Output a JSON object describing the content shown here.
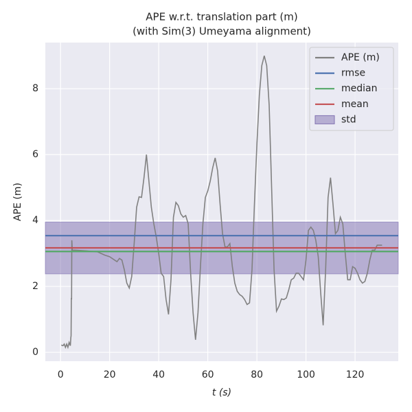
{
  "chart_data": {
    "type": "line",
    "title": [
      "APE w.r.t. translation part (m)",
      "(with Sim(3) Umeyama alignment)"
    ],
    "x_label": "t (s)",
    "y_label": "APE (m)",
    "xlim": [
      -6.2,
      137.6
    ],
    "ylim": [
      -0.27,
      9.4
    ],
    "xticks": [
      0,
      20,
      40,
      60,
      80,
      100,
      120
    ],
    "yticks": [
      0,
      2,
      4,
      6,
      8
    ],
    "grid": true,
    "legend": "upper right",
    "x": [
      0.3,
      1,
      1.5,
      2,
      2.5,
      3,
      3.5,
      4,
      4.2,
      4.3,
      4.4,
      4.5,
      4.6,
      4.8,
      6,
      10,
      15,
      18,
      20,
      22,
      23,
      24,
      25,
      26,
      27,
      28,
      29,
      30,
      31,
      32,
      33,
      34,
      35,
      36,
      37,
      38,
      39,
      40,
      41,
      42,
      43,
      44,
      45,
      46,
      47,
      48,
      49,
      50,
      51,
      52,
      53,
      54,
      55,
      56,
      57,
      58,
      59,
      60,
      61,
      62,
      63,
      64,
      65,
      66,
      67,
      68,
      69,
      70,
      71,
      72,
      73,
      74,
      75,
      76,
      77,
      78,
      79,
      80,
      81,
      82,
      83,
      84,
      85,
      86,
      87,
      88,
      89,
      90,
      91,
      92,
      93,
      94,
      95,
      96,
      97,
      98,
      99,
      100,
      101,
      102,
      103,
      104,
      105,
      106,
      107,
      108,
      109,
      110,
      111,
      112,
      113,
      114,
      115,
      116,
      117,
      118,
      119,
      120,
      121,
      122,
      123,
      124,
      125,
      126,
      127,
      128,
      129,
      130,
      131
    ],
    "series": [
      {
        "name": "APE (m)",
        "color": "#808080",
        "values": [
          0.22,
          0.2,
          0.25,
          0.15,
          0.25,
          0.15,
          0.3,
          0.2,
          0.45,
          0.5,
          1.65,
          1.6,
          3.4,
          3.1,
          3.1,
          3.08,
          3.05,
          2.95,
          2.9,
          2.8,
          2.75,
          2.85,
          2.8,
          2.5,
          2.1,
          1.95,
          2.3,
          3.3,
          4.4,
          4.72,
          4.7,
          5.3,
          6.0,
          5.2,
          4.4,
          3.9,
          3.5,
          3.0,
          2.4,
          2.3,
          1.6,
          1.15,
          2.2,
          4.1,
          4.55,
          4.45,
          4.2,
          4.1,
          4.15,
          3.9,
          2.4,
          1.2,
          0.38,
          1.2,
          2.6,
          3.9,
          4.7,
          4.9,
          5.2,
          5.6,
          5.9,
          5.5,
          4.5,
          3.6,
          3.2,
          3.2,
          3.3,
          2.6,
          2.1,
          1.85,
          1.75,
          1.7,
          1.6,
          1.45,
          1.5,
          2.5,
          4.5,
          6.3,
          7.8,
          8.7,
          9.0,
          8.7,
          7.5,
          5.0,
          2.5,
          1.25,
          1.4,
          1.62,
          1.6,
          1.65,
          1.9,
          2.2,
          2.25,
          2.4,
          2.4,
          2.3,
          2.2,
          2.8,
          3.7,
          3.8,
          3.7,
          3.4,
          2.9,
          1.8,
          0.82,
          2.5,
          4.7,
          5.3,
          4.5,
          3.6,
          3.7,
          4.1,
          3.9,
          3.0,
          2.2,
          2.2,
          2.6,
          2.55,
          2.4,
          2.2,
          2.1,
          2.15,
          2.4,
          2.8,
          3.1,
          3.1,
          3.25,
          3.25,
          3.25
        ]
      }
    ],
    "hlines": [
      {
        "name": "rmse",
        "color": "#4c72b0",
        "value": 3.54
      },
      {
        "name": "median",
        "color": "#55a868",
        "value": 3.06
      },
      {
        "name": "mean",
        "color": "#c44e52",
        "value": 3.17
      }
    ],
    "band": {
      "name": "std",
      "color": "#8172b2",
      "range": [
        2.38,
        3.95
      ]
    }
  }
}
